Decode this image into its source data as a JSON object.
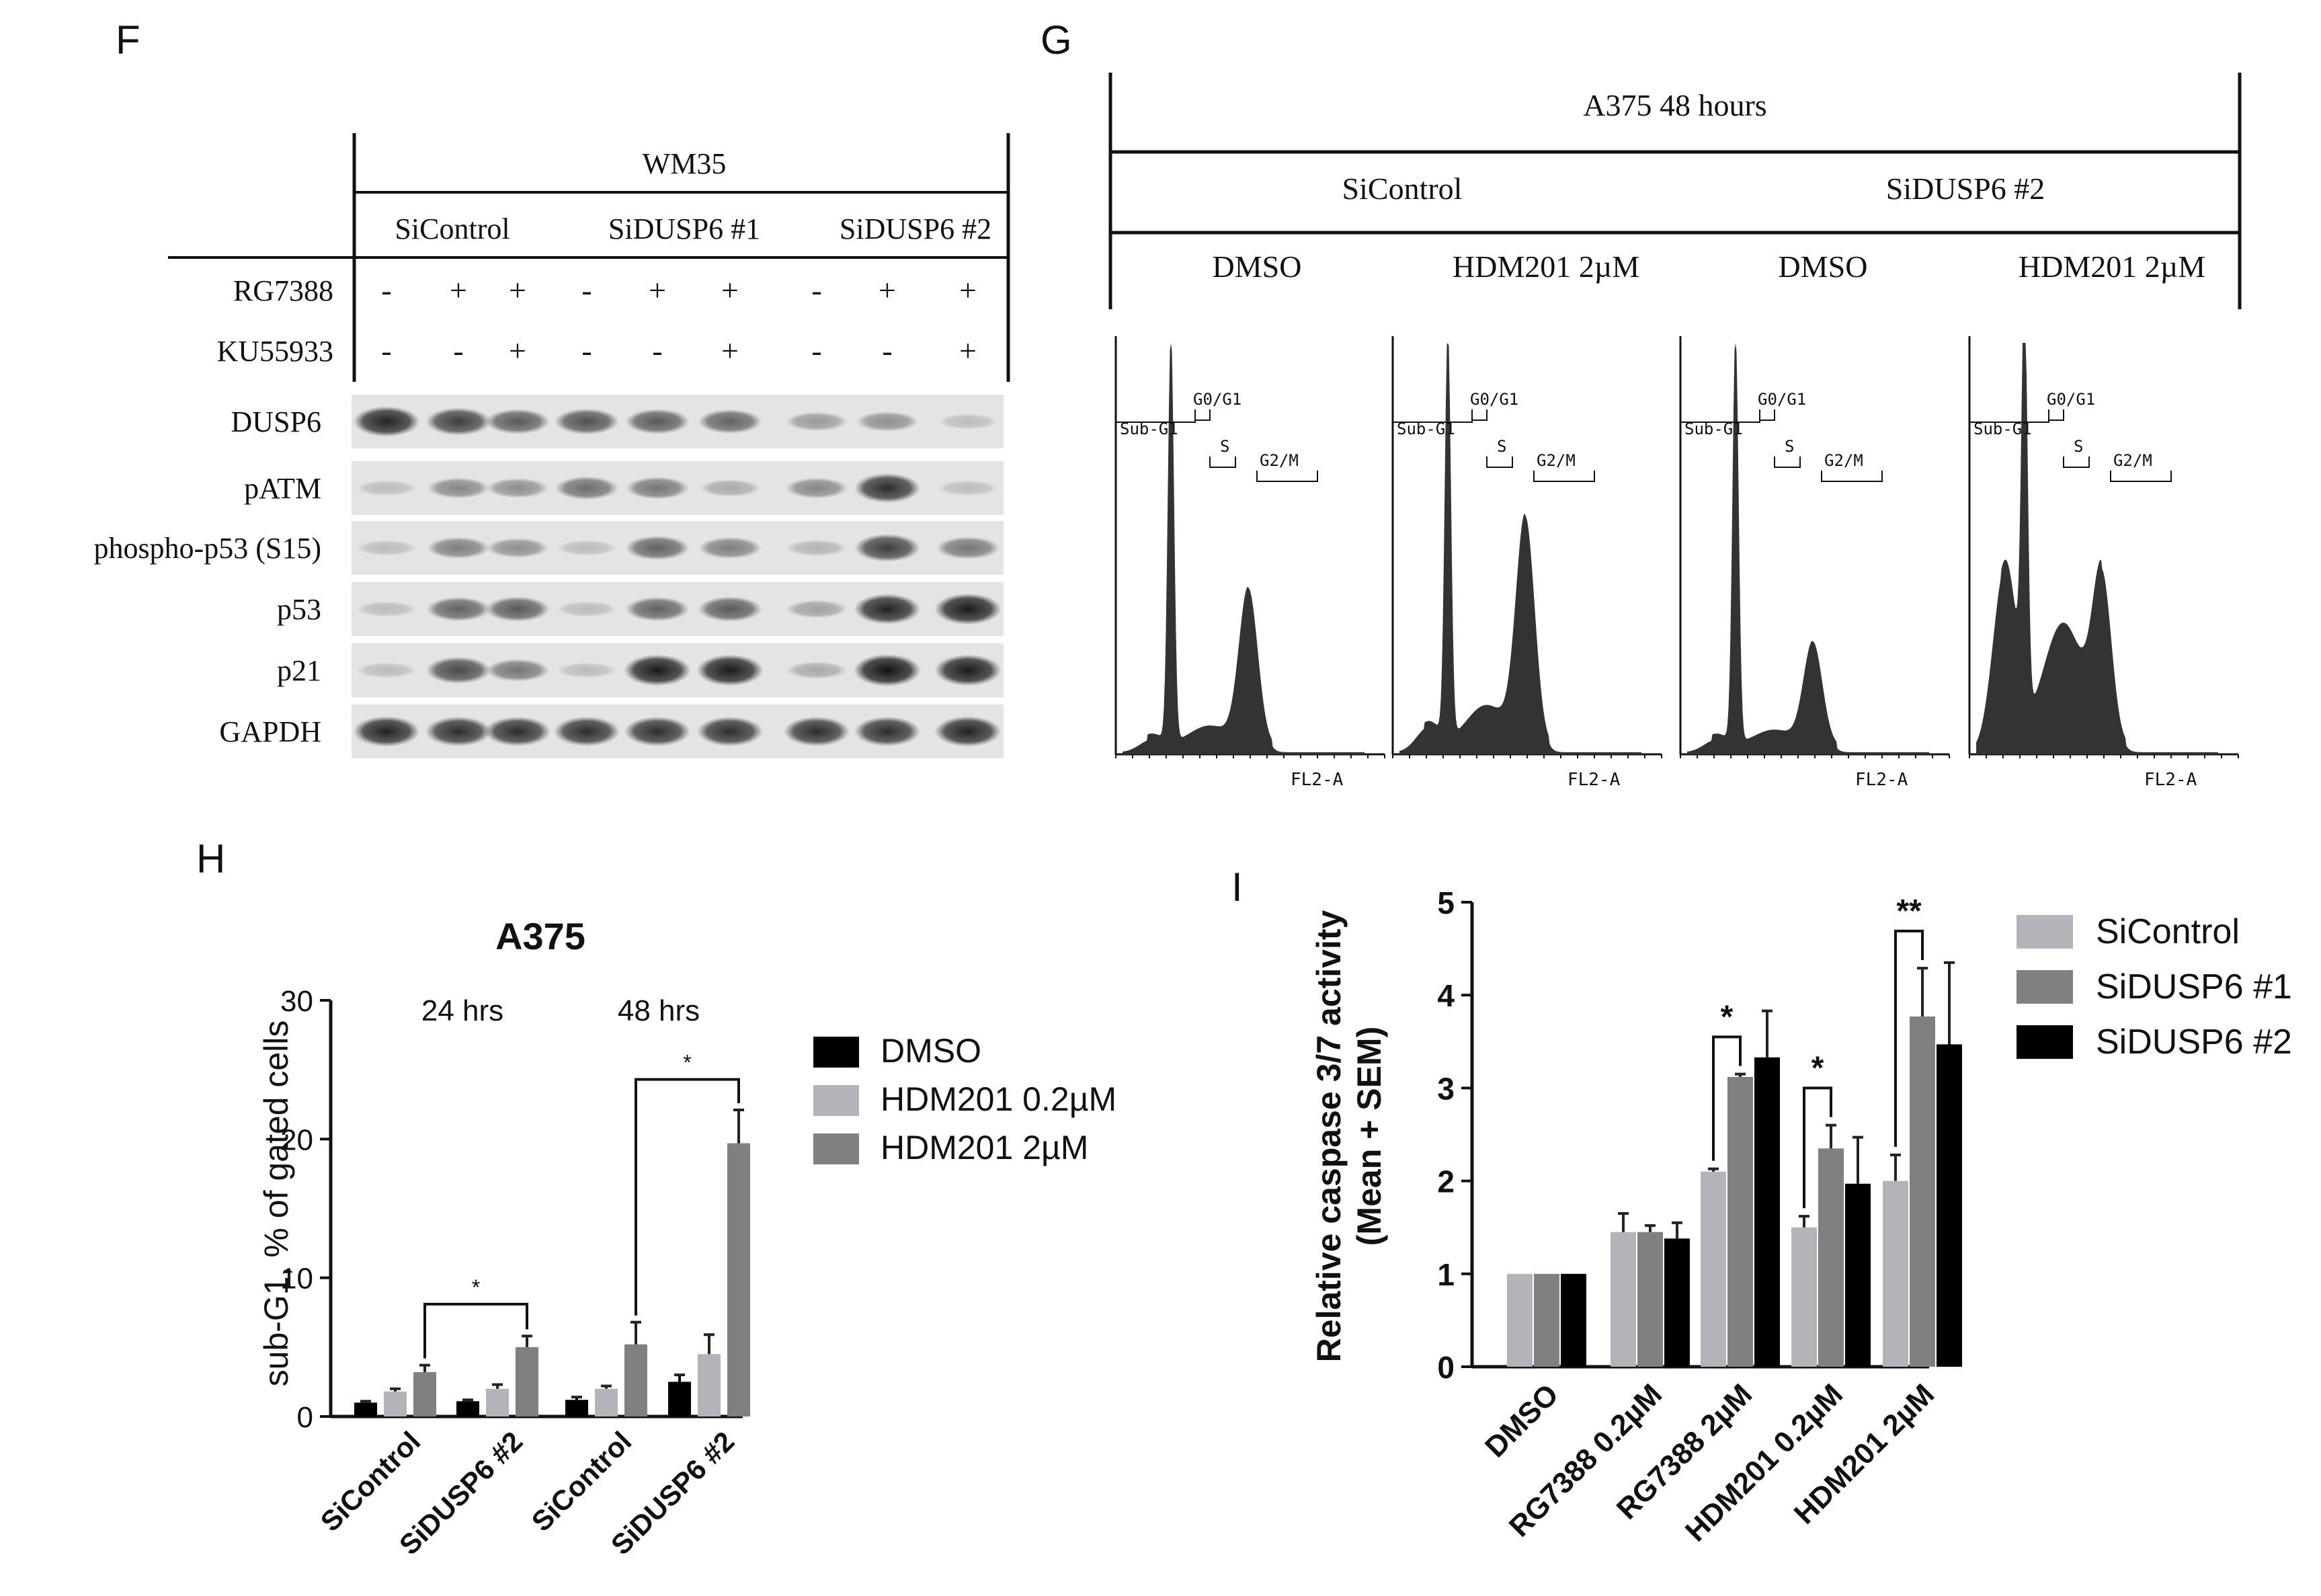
{
  "panels": {
    "F": {
      "letter": "F",
      "cell_line": "WM35",
      "groups": [
        "SiControl",
        "SiDUSP6 #1",
        "SiDUSP6 #2"
      ],
      "treatments": [
        {
          "name": "RG7388",
          "signs": [
            "-",
            "+",
            "+",
            "-",
            "+",
            "+",
            "-",
            "+",
            "+"
          ]
        },
        {
          "name": "KU55933",
          "signs": [
            "-",
            "-",
            "+",
            "-",
            "-",
            "+",
            "-",
            "-",
            "+"
          ]
        }
      ],
      "blots": [
        {
          "label": "DUSP6",
          "intensities": [
            0.9,
            0.75,
            0.6,
            0.65,
            0.6,
            0.55,
            0.25,
            0.3,
            0.05
          ]
        },
        {
          "label": "pATM",
          "intensities": [
            0.05,
            0.35,
            0.3,
            0.5,
            0.45,
            0.15,
            0.35,
            0.85,
            0.05
          ]
        },
        {
          "label": "phospho-p53 (S15)",
          "intensities": [
            0.05,
            0.4,
            0.3,
            0.05,
            0.55,
            0.4,
            0.1,
            0.75,
            0.45
          ]
        },
        {
          "label": "p53",
          "intensities": [
            0.05,
            0.55,
            0.6,
            0.05,
            0.55,
            0.6,
            0.2,
            0.9,
            0.95
          ]
        },
        {
          "label": "p21",
          "intensities": [
            0.05,
            0.7,
            0.45,
            0.05,
            0.95,
            0.95,
            0.15,
            1.0,
            0.95
          ]
        },
        {
          "label": "GAPDH",
          "intensities": [
            0.9,
            0.85,
            0.85,
            0.85,
            0.85,
            0.85,
            0.85,
            0.85,
            0.9
          ]
        }
      ]
    },
    "G": {
      "letter": "G",
      "title": "A375 48 hours",
      "groups": [
        "SiControl",
        "SiDUSP6 #2"
      ],
      "conditions": [
        "DMSO",
        "HDM201 2µM",
        "DMSO",
        "HDM201 2µM"
      ],
      "gates": [
        "Sub-G1",
        "G0/G1",
        "S",
        "G2/M"
      ],
      "axis_label": "FL2-A",
      "histograms": [
        {
          "subg1": 0.03,
          "g1": 1.0,
          "g2": 0.38,
          "s": 0.05
        },
        {
          "subg1": 0.06,
          "g1": 1.0,
          "g2": 0.55,
          "s": 0.1
        },
        {
          "subg1": 0.03,
          "g1": 1.0,
          "g2": 0.25,
          "s": 0.04
        },
        {
          "subg1": 0.45,
          "g1": 1.0,
          "g2": 0.4,
          "s": 0.3
        }
      ]
    },
    "H": {
      "letter": "H",
      "chart_data": {
        "type": "bar",
        "title": "A375",
        "ylabel": "sub-G1, % of gated cells",
        "ylim": [
          0,
          30
        ],
        "yticks": [
          0,
          10,
          20,
          30
        ],
        "time_labels": [
          "24 hrs",
          "48 hrs"
        ],
        "categories": [
          "SiControl",
          "SiDUSP6 #2",
          "SiControl",
          "SiDUSP6 #2"
        ],
        "series": [
          {
            "name": "DMSO",
            "color": "#000000",
            "values": [
              1.0,
              1.1,
              1.2,
              2.5
            ],
            "errors": [
              0.1,
              0.1,
              0.2,
              0.5
            ]
          },
          {
            "name": "HDM201 0.2µM",
            "color": "#b3b3b9",
            "values": [
              1.8,
              2.0,
              2.0,
              4.5
            ],
            "errors": [
              0.2,
              0.3,
              0.2,
              1.4
            ]
          },
          {
            "name": "HDM201 2µM",
            "color": "#808080",
            "values": [
              3.2,
              5.0,
              5.2,
              19.7
            ],
            "errors": [
              0.5,
              0.8,
              1.6,
              2.4
            ]
          }
        ],
        "significance": [
          {
            "from": [
              0,
              2
            ],
            "to": [
              1,
              2
            ],
            "label": "*"
          },
          {
            "from": [
              2,
              2
            ],
            "to": [
              3,
              2
            ],
            "label": "*"
          }
        ],
        "legend": "right"
      }
    },
    "I": {
      "letter": "I",
      "chart_data": {
        "type": "bar",
        "ylabel": "Relative caspase 3/7 activity (Mean + SEM)",
        "ylim": [
          0,
          5
        ],
        "yticks": [
          0,
          1,
          2,
          3,
          4,
          5
        ],
        "categories": [
          "DMSO",
          "RG7388 0.2µM",
          "RG7388 2µM",
          "HDM201 0.2µM",
          "HDM201 2µM"
        ],
        "series": [
          {
            "name": "SiControl",
            "color": "#b3b3b9",
            "values": [
              1.0,
              1.45,
              2.1,
              1.5,
              2.0
            ],
            "errors": [
              0,
              0.2,
              0.03,
              0.12,
              0.28
            ]
          },
          {
            "name": "SiDUSP6 #1",
            "color": "#808080",
            "values": [
              1.0,
              1.45,
              3.12,
              2.35,
              3.77
            ],
            "errors": [
              0,
              0.07,
              0.03,
              0.25,
              0.52
            ]
          },
          {
            "name": "SiDUSP6 #2",
            "color": "#000000",
            "values": [
              1.0,
              1.38,
              3.33,
              1.97,
              3.47
            ],
            "errors": [
              0,
              0.17,
              0.5,
              0.5,
              0.88
            ]
          }
        ],
        "significance": [
          {
            "category": 2,
            "label": "*"
          },
          {
            "category": 3,
            "label": "*"
          },
          {
            "category": 4,
            "label": "**"
          }
        ],
        "legend": "right"
      }
    }
  }
}
